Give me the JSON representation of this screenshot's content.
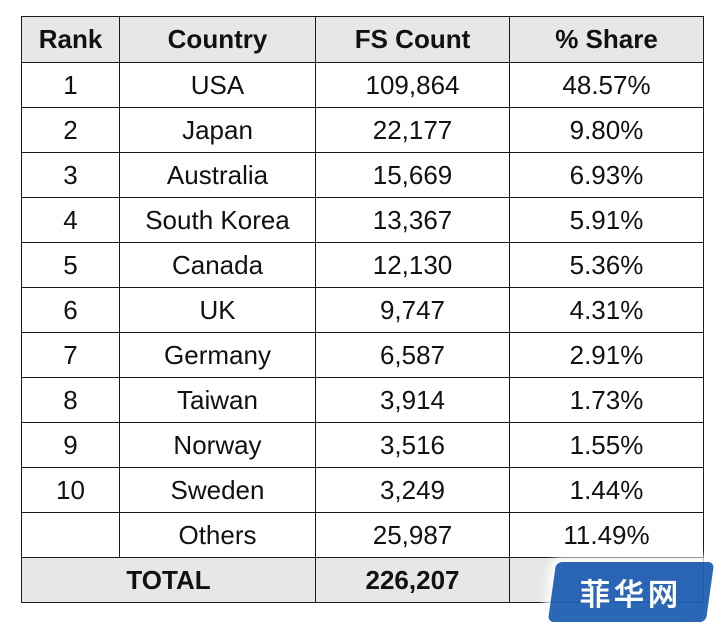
{
  "table": {
    "headers": {
      "rank": "Rank",
      "country": "Country",
      "count": "FS Count",
      "share": "% Share"
    },
    "rows": [
      {
        "rank": "1",
        "country": "USA",
        "count": "109,864",
        "share": "48.57%"
      },
      {
        "rank": "2",
        "country": "Japan",
        "count": "22,177",
        "share": "9.80%"
      },
      {
        "rank": "3",
        "country": "Australia",
        "count": "15,669",
        "share": "6.93%"
      },
      {
        "rank": "4",
        "country": "South Korea",
        "count": "13,367",
        "share": "5.91%"
      },
      {
        "rank": "5",
        "country": "Canada",
        "count": "12,130",
        "share": "5.36%"
      },
      {
        "rank": "6",
        "country": "UK",
        "count": "9,747",
        "share": "4.31%"
      },
      {
        "rank": "7",
        "country": "Germany",
        "count": "6,587",
        "share": "2.91%"
      },
      {
        "rank": "8",
        "country": "Taiwan",
        "count": "3,914",
        "share": "1.73%"
      },
      {
        "rank": "9",
        "country": "Norway",
        "count": "3,516",
        "share": "1.55%"
      },
      {
        "rank": "10",
        "country": "Sweden",
        "count": "3,249",
        "share": "1.44%"
      },
      {
        "rank": "",
        "country": "Others",
        "count": "25,987",
        "share": "11.49%"
      }
    ],
    "total": {
      "label": "TOTAL",
      "count": "226,207",
      "share": ""
    }
  },
  "watermark": {
    "text": "菲华网"
  },
  "colors": {
    "header_bg": "#e7e7e7",
    "border": "#1a1a1a",
    "watermark_bg": "#1f5fb2"
  }
}
